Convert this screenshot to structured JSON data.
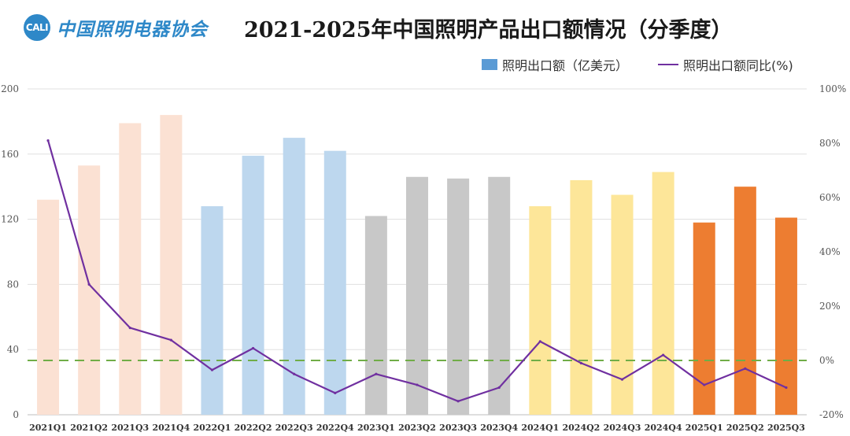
{
  "header": {
    "logo_mark": "CALI",
    "logo_text": "中国照明电器协会",
    "title": "2021-2025年中国照明产品出口额情况（分季度）"
  },
  "legend": {
    "bar_label": "照明出口额（亿美元）",
    "line_label": "照明出口额同比(%)"
  },
  "colors": {
    "2021": "#fbe1d3",
    "2022": "#bdd7ee",
    "2023": "#c8c8c8",
    "2024": "#fde699",
    "2025": "#ed7d31",
    "line": "#7030a0",
    "zero_line": "#70ad47",
    "legend_bar": "#5b9bd5"
  },
  "chart_data": {
    "type": "bar",
    "title": "2021-2025年中国照明产品出口额情况（分季度）",
    "categories": [
      "2021Q1",
      "2021Q2",
      "2021Q3",
      "2021Q4",
      "2022Q1",
      "2022Q2",
      "2022Q3",
      "2022Q4",
      "2023Q1",
      "2023Q2",
      "2023Q3",
      "2023Q4",
      "2024Q1",
      "2024Q2",
      "2024Q3",
      "2024Q4",
      "2025Q1",
      "2025Q2",
      "2025Q3"
    ],
    "series": [
      {
        "name": "照明出口额（亿美元）",
        "type": "bar",
        "axis": "left",
        "values": [
          132,
          153,
          179,
          184,
          128,
          159,
          170,
          162,
          122,
          146,
          145,
          146,
          128,
          144,
          135,
          149,
          118,
          140,
          121
        ]
      },
      {
        "name": "照明出口额同比(%)",
        "type": "line",
        "axis": "right",
        "values": [
          81,
          28,
          12,
          7.5,
          -3.5,
          4.5,
          -5,
          -12,
          -5,
          -9,
          -15,
          -10,
          7,
          -1,
          -7,
          2,
          -9,
          -3,
          -10
        ]
      }
    ],
    "ylim_left": [
      0,
      200
    ],
    "yticks_left": [
      "0",
      "40",
      "80",
      "120",
      "160",
      "200"
    ],
    "ylim_right": [
      -20,
      100
    ],
    "yticks_right": [
      "-20%",
      "0%",
      "20%",
      "40%",
      "60%",
      "80%",
      "100%"
    ],
    "reference_line": {
      "axis": "right",
      "value": 0,
      "style": "dashed"
    },
    "grid": true,
    "legend_position": "top-right"
  }
}
